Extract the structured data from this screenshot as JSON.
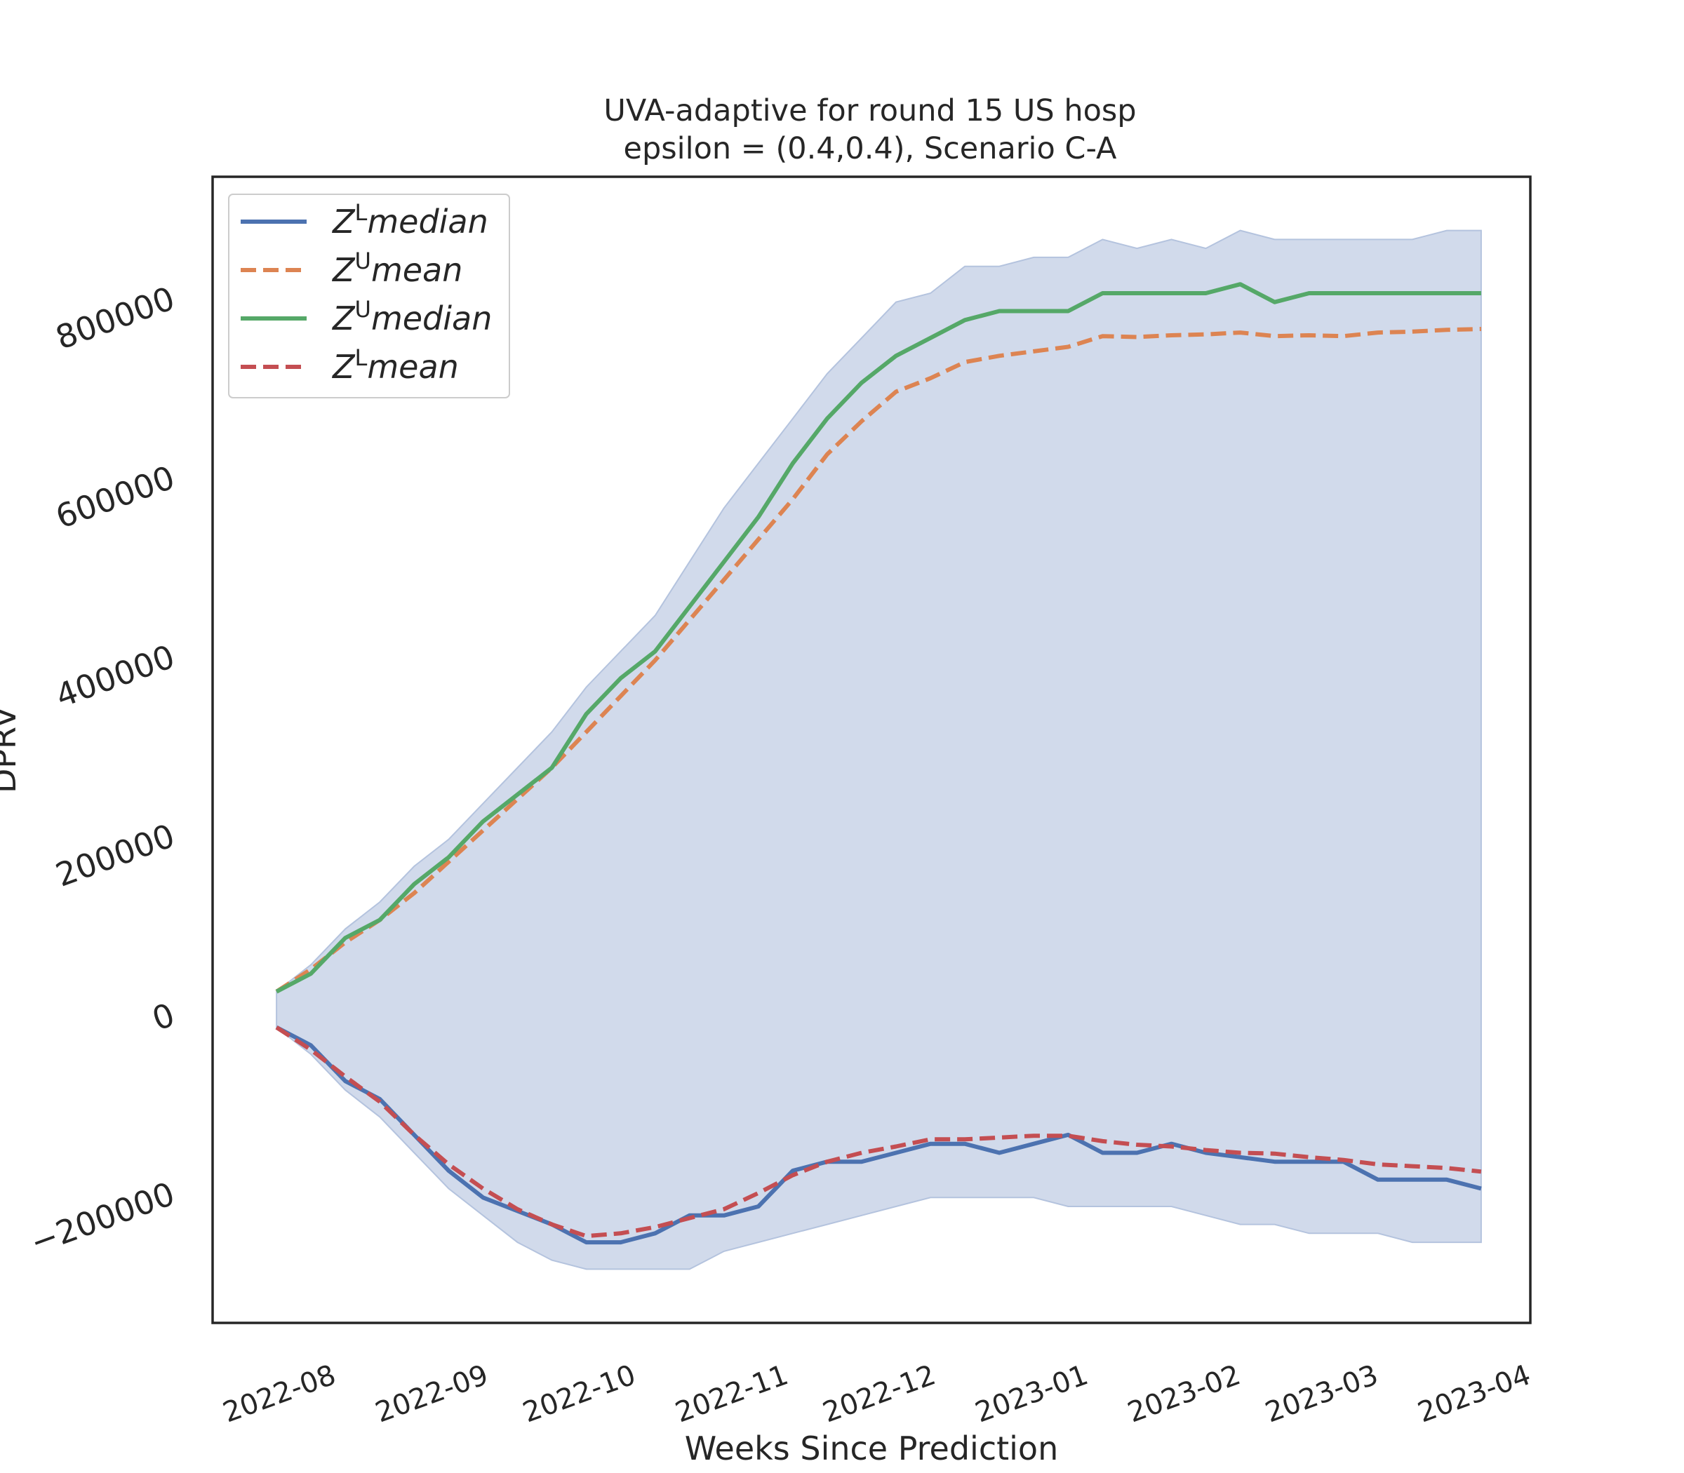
{
  "chart_data": {
    "type": "line",
    "title_line1": "UVA-adaptive for round 15 US  hosp",
    "title_line2": "epsilon = (0.4,0.4), Scenario C-A",
    "xlabel": "Weeks Since Prediction",
    "ylabel": "DPRV",
    "xlim": [
      "2022-07-10",
      "2023-04-04"
    ],
    "ylim": [
      -345000,
      935000
    ],
    "yticks": [
      {
        "value": -200000,
        "label": "−200000"
      },
      {
        "value": 0,
        "label": "0"
      },
      {
        "value": 200000,
        "label": "200000"
      },
      {
        "value": 400000,
        "label": "400000"
      },
      {
        "value": 600000,
        "label": "600000"
      },
      {
        "value": 800000,
        "label": "800000"
      }
    ],
    "xticks": [
      {
        "value": "2022-08-01",
        "label": "2022-08"
      },
      {
        "value": "2022-09-01",
        "label": "2022-09"
      },
      {
        "value": "2022-10-01",
        "label": "2022-10"
      },
      {
        "value": "2022-11-01",
        "label": "2022-11"
      },
      {
        "value": "2022-12-01",
        "label": "2022-12"
      },
      {
        "value": "2023-01-01",
        "label": "2023-01"
      },
      {
        "value": "2023-02-01",
        "label": "2023-02"
      },
      {
        "value": "2023-03-01",
        "label": "2023-03"
      },
      {
        "value": "2023-04-01",
        "label": "2023-04"
      }
    ],
    "x": [
      "2022-07-23",
      "2022-07-30",
      "2022-08-06",
      "2022-08-13",
      "2022-08-20",
      "2022-08-27",
      "2022-09-03",
      "2022-09-10",
      "2022-09-17",
      "2022-09-24",
      "2022-10-01",
      "2022-10-08",
      "2022-10-15",
      "2022-10-22",
      "2022-10-29",
      "2022-11-05",
      "2022-11-12",
      "2022-11-19",
      "2022-11-26",
      "2022-12-03",
      "2022-12-10",
      "2022-12-17",
      "2022-12-24",
      "2022-12-31",
      "2023-01-07",
      "2023-01-14",
      "2023-01-21",
      "2023-01-28",
      "2023-02-04",
      "2023-02-11",
      "2023-02-18",
      "2023-02-25",
      "2023-03-04",
      "2023-03-11",
      "2023-03-18",
      "2023-03-25"
    ],
    "band": {
      "upper": [
        25000,
        55000,
        95000,
        125000,
        165000,
        195000,
        235000,
        275000,
        315000,
        365000,
        405000,
        445000,
        505000,
        565000,
        615000,
        665000,
        715000,
        755000,
        795000,
        805000,
        835000,
        835000,
        845000,
        845000,
        865000,
        855000,
        865000,
        855000,
        875000,
        865000,
        865000,
        865000,
        865000,
        865000,
        875000,
        875000
      ],
      "lower": [
        -15000,
        -45000,
        -85000,
        -115000,
        -155000,
        -195000,
        -225000,
        -255000,
        -275000,
        -285000,
        -285000,
        -285000,
        -285000,
        -265000,
        -255000,
        -245000,
        -235000,
        -225000,
        -215000,
        -205000,
        -205000,
        -205000,
        -205000,
        -215000,
        -215000,
        -215000,
        -215000,
        -225000,
        -235000,
        -235000,
        -245000,
        -245000,
        -245000,
        -255000,
        -255000,
        -255000
      ],
      "color": "#d1daeb",
      "edge_color": "#b4c3de"
    },
    "series": [
      {
        "name": "median",
        "sym": "Z",
        "sup": "L",
        "style": "solid",
        "color": "#4c72b0",
        "values": [
          -15000,
          -35000,
          -75000,
          -95000,
          -135000,
          -175000,
          -205000,
          -220000,
          -235000,
          -255000,
          -255000,
          -245000,
          -225000,
          -225000,
          -215000,
          -175000,
          -165000,
          -165000,
          -155000,
          -145000,
          -145000,
          -155000,
          -145000,
          -135000,
          -155000,
          -155000,
          -145000,
          -155000,
          -160000,
          -165000,
          -165000,
          -165000,
          -185000,
          -185000,
          -185000,
          -195000
        ]
      },
      {
        "name": "mean",
        "sym": "Z",
        "sup": "U",
        "style": "dashed",
        "color": "#dd8452",
        "values": [
          25000,
          50000,
          80000,
          105000,
          135000,
          170000,
          205000,
          240000,
          275000,
          315000,
          355000,
          395000,
          440000,
          485000,
          530000,
          575000,
          625000,
          662000,
          695000,
          710000,
          728000,
          735000,
          740000,
          745000,
          757000,
          756000,
          758000,
          759000,
          761000,
          757000,
          758000,
          757000,
          761000,
          762000,
          764000,
          765000
        ]
      },
      {
        "name": "median",
        "sym": "Z",
        "sup": "U",
        "style": "solid",
        "color": "#55a868",
        "values": [
          25000,
          45000,
          85000,
          105000,
          145000,
          175000,
          215000,
          245000,
          275000,
          335000,
          375000,
          405000,
          455000,
          505000,
          555000,
          615000,
          665000,
          705000,
          735000,
          755000,
          775000,
          785000,
          785000,
          785000,
          805000,
          805000,
          805000,
          805000,
          815000,
          795000,
          805000,
          805000,
          805000,
          805000,
          805000,
          805000
        ]
      },
      {
        "name": "mean",
        "sym": "Z",
        "sup": "L",
        "style": "dashed",
        "color": "#c44e52",
        "values": [
          -15000,
          -40000,
          -70000,
          -98000,
          -135000,
          -168000,
          -195000,
          -218000,
          -235000,
          -248000,
          -245000,
          -238000,
          -228000,
          -218000,
          -200000,
          -180000,
          -165000,
          -155000,
          -148000,
          -140000,
          -140000,
          -138000,
          -136000,
          -136000,
          -142000,
          -146000,
          -148000,
          -152000,
          -155000,
          -156000,
          -160000,
          -163000,
          -168000,
          -170000,
          -172000,
          -176000
        ]
      }
    ],
    "legend_placement": "upper-left",
    "grid": false
  }
}
